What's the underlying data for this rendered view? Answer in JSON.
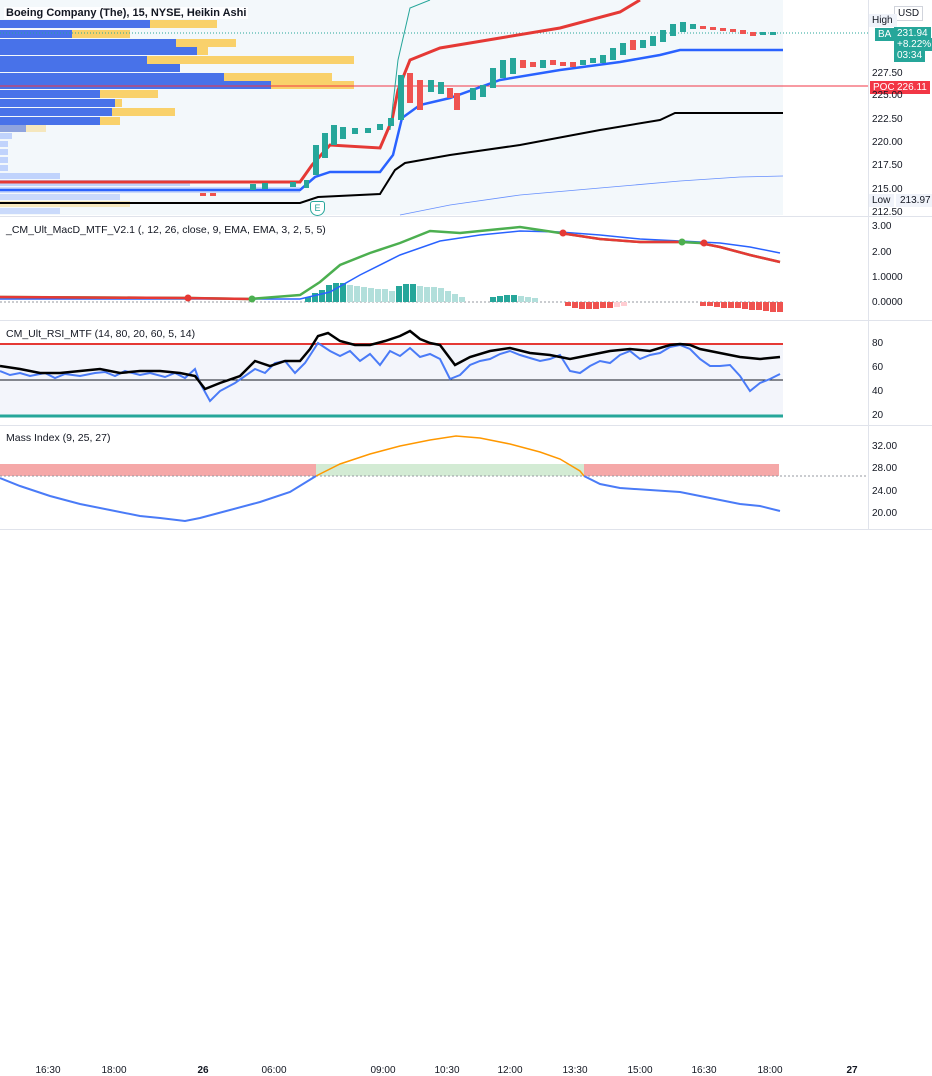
{
  "header": {
    "title": "Boeing Company (The), 15, NYSE, Heikin Ashi",
    "currency": "USD"
  },
  "price_pane": {
    "ticks": [
      "227.50",
      "225.00",
      "222.50",
      "220.00",
      "217.50",
      "215.00",
      "212.50"
    ],
    "high_label": "High",
    "low_label": "Low",
    "low_value": "213.97",
    "symbol_badge": "BA",
    "last_price": "231.94",
    "change": "+8.22%",
    "countdown": "03:34",
    "poc_label": "POC",
    "poc_value": "226.11",
    "event_marker": "E"
  },
  "macd_pane": {
    "title": "_CM_Ult_MacD_MTF_V2.1 (, 12, 26, close, 9, EMA, EMA, 3, 2, 5, 5)",
    "ticks": [
      "3.00",
      "2.00",
      "1.0000",
      "0.0000"
    ]
  },
  "rsi_pane": {
    "title": "CM_Ult_RSI_MTF (14, 80, 20, 60, 5, 14)",
    "ticks": [
      "80",
      "60",
      "40",
      "20"
    ]
  },
  "mass_pane": {
    "title": "Mass Index (9, 25, 27)",
    "ticks": [
      "32.00",
      "28.00",
      "24.00",
      "20.00"
    ]
  },
  "time_axis": {
    "labels": [
      "16:30",
      "18:00",
      "26",
      "06:00",
      "09:00",
      "10:30",
      "12:00",
      "13:30",
      "15:00",
      "16:30",
      "18:00",
      "27"
    ],
    "bold": [
      false,
      false,
      true,
      false,
      false,
      false,
      false,
      false,
      false,
      false,
      false,
      true
    ]
  },
  "colors": {
    "up": "#26a69a",
    "down": "#ef5350",
    "macd_line": "#4caf50",
    "signal": "#2962ff",
    "rsi_black": "#000000",
    "volume_profile_blue": "#2962ff",
    "volume_profile_yellow": "#fbc02d",
    "poc": "#f23645",
    "upper_band": "#e53935",
    "lower_band": "#2962ff"
  }
}
